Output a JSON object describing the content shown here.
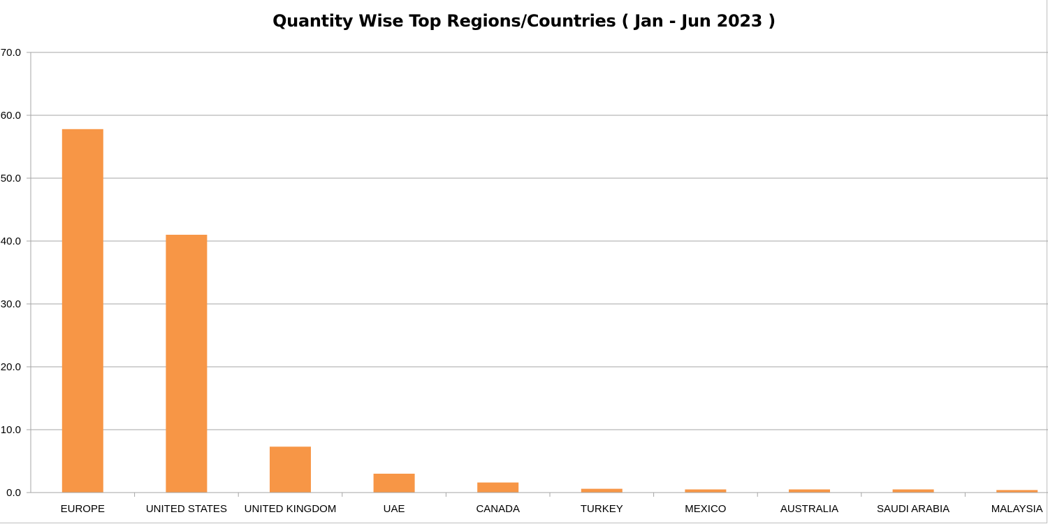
{
  "colors": {
    "bar": "#f79646",
    "grid": "#a6a6a6",
    "axis": "#a6a6a6",
    "text": "#000000"
  },
  "chart_data": {
    "type": "bar",
    "title": "Quantity Wise Top Regions/Countries ( Jan - Jun 2023 )",
    "xlabel": "",
    "ylabel": "",
    "ylim": [
      0,
      70
    ],
    "ytick_step": 10,
    "yticks": [
      "0.0",
      "10.0",
      "20.0",
      "30.0",
      "40.0",
      "50.0",
      "60.0",
      "70.0"
    ],
    "grid": true,
    "legend": "none",
    "categories": [
      "EUROPE",
      "UNITED STATES",
      "UNITED KINGDOM",
      "UAE",
      "CANADA",
      "TURKEY",
      "MEXICO",
      "AUSTRALIA",
      "SAUDI ARABIA",
      "MALAYSIA"
    ],
    "values": [
      57.8,
      41.0,
      7.3,
      3.0,
      1.6,
      0.6,
      0.5,
      0.5,
      0.5,
      0.4
    ]
  }
}
